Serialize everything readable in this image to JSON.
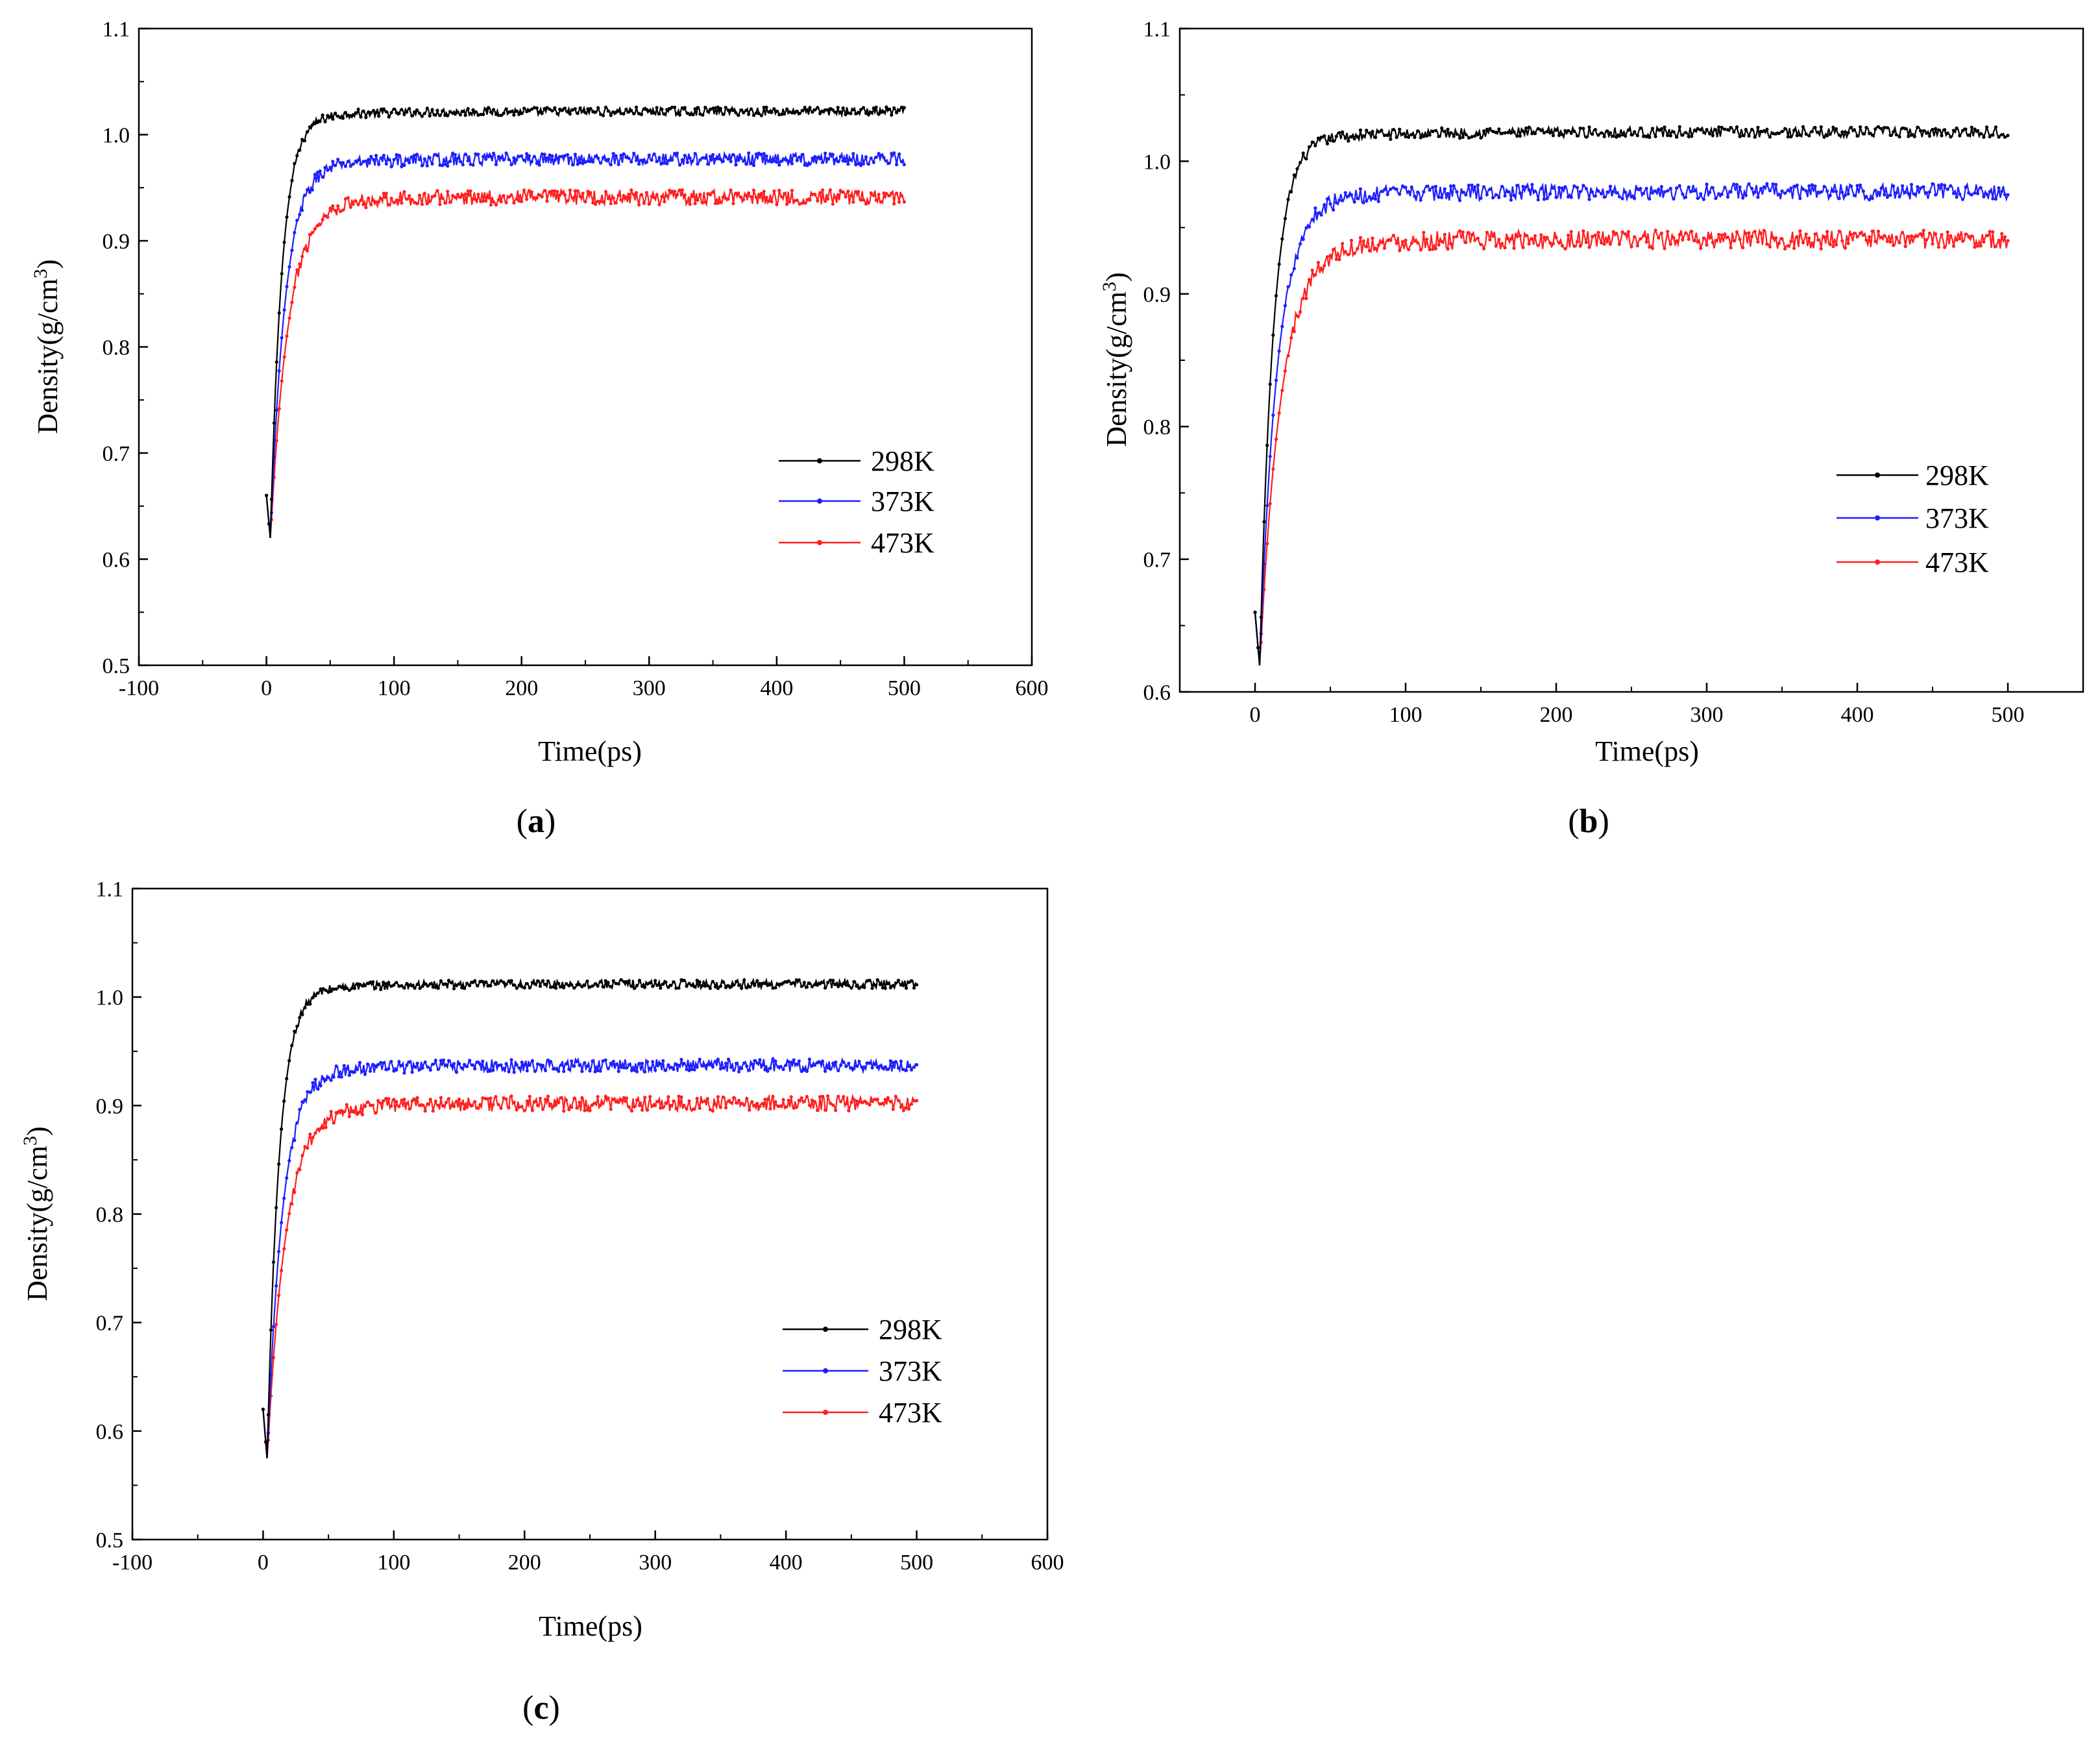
{
  "figure": {
    "panels": [
      {
        "letter": "a",
        "open": "(",
        "close": ")"
      },
      {
        "letter": "b",
        "open": "(",
        "close": ")"
      },
      {
        "letter": "c",
        "open": "(",
        "close": ")"
      }
    ]
  },
  "chart_data": [
    {
      "type": "line",
      "panel": "a",
      "xlabel": "Time(ps)",
      "ylabel_main": "Density(g/cm",
      "ylabel_sup": "3",
      "ylabel_end": ")",
      "xlim": [
        -100,
        600
      ],
      "ylim": [
        0.5,
        1.1
      ],
      "xticks": [
        -100,
        0,
        100,
        200,
        300,
        400,
        500,
        600
      ],
      "yticks": [
        0.5,
        0.6,
        0.7,
        0.8,
        0.9,
        1.0,
        1.1
      ],
      "ytick_labels": [
        "0.5",
        "0.6",
        "0.7",
        "0.8",
        "0.9",
        "1.0",
        "1.1"
      ],
      "legend_position": "center-right",
      "series": [
        {
          "name": "298K",
          "color": "#000000",
          "start": 0.66,
          "min": 0.62,
          "plateau": 1.022,
          "drift": 0.006,
          "noise": 0.004
        },
        {
          "name": "373K",
          "color": "#1f1fff",
          "start": 0.66,
          "min": 0.62,
          "plateau": 0.977,
          "drift": 0.006,
          "noise": 0.006
        },
        {
          "name": "473K",
          "color": "#ff2020",
          "start": 0.66,
          "min": 0.62,
          "plateau": 0.941,
          "drift": 0.005,
          "noise": 0.007
        }
      ]
    },
    {
      "type": "line",
      "panel": "b",
      "xlabel": "Time(ps)",
      "ylabel_main": "Density(g/cm",
      "ylabel_sup": "3",
      "ylabel_end": ")",
      "xlim": [
        -50,
        550
      ],
      "ylim": [
        0.6,
        1.1
      ],
      "xticks": [
        0,
        100,
        200,
        300,
        400,
        500
      ],
      "yticks": [
        0.6,
        0.7,
        0.8,
        0.9,
        1.0,
        1.1
      ],
      "ytick_labels": [
        "0.6",
        "0.7",
        "0.8",
        "0.9",
        "1.0",
        "1.1"
      ],
      "legend_position": "center-right",
      "series": [
        {
          "name": "298K",
          "color": "#000000",
          "start": 0.66,
          "min": 0.62,
          "plateau": 1.022,
          "drift": 0.006,
          "noise": 0.004
        },
        {
          "name": "373K",
          "color": "#1f1fff",
          "start": 0.66,
          "min": 0.62,
          "plateau": 0.977,
          "drift": 0.006,
          "noise": 0.006
        },
        {
          "name": "473K",
          "color": "#ff2020",
          "start": 0.66,
          "min": 0.62,
          "plateau": 0.941,
          "drift": 0.005,
          "noise": 0.007
        }
      ]
    },
    {
      "type": "line",
      "panel": "c",
      "xlabel": "Time(ps)",
      "ylabel_main": "Density(g/cm",
      "ylabel_sup": "3",
      "ylabel_end": ")",
      "xlim": [
        -100,
        600
      ],
      "ylim": [
        0.5,
        1.1
      ],
      "xticks": [
        -100,
        0,
        100,
        200,
        300,
        400,
        500,
        600
      ],
      "yticks": [
        0.5,
        0.6,
        0.7,
        0.8,
        0.9,
        1.0,
        1.1
      ],
      "ytick_labels": [
        "0.5",
        "0.6",
        "0.7",
        "0.8",
        "0.9",
        "1.0",
        "1.1"
      ],
      "legend_position": "center-right",
      "series": [
        {
          "name": "298K",
          "color": "#000000",
          "start": 0.62,
          "min": 0.575,
          "plateau": 1.012,
          "drift": 0.006,
          "noise": 0.004
        },
        {
          "name": "373K",
          "color": "#1f1fff",
          "start": 0.62,
          "min": 0.575,
          "plateau": 0.937,
          "drift": 0.007,
          "noise": 0.006
        },
        {
          "name": "473K",
          "color": "#ff2020",
          "start": 0.62,
          "min": 0.575,
          "plateau": 0.902,
          "drift": 0.006,
          "noise": 0.007
        }
      ]
    }
  ]
}
